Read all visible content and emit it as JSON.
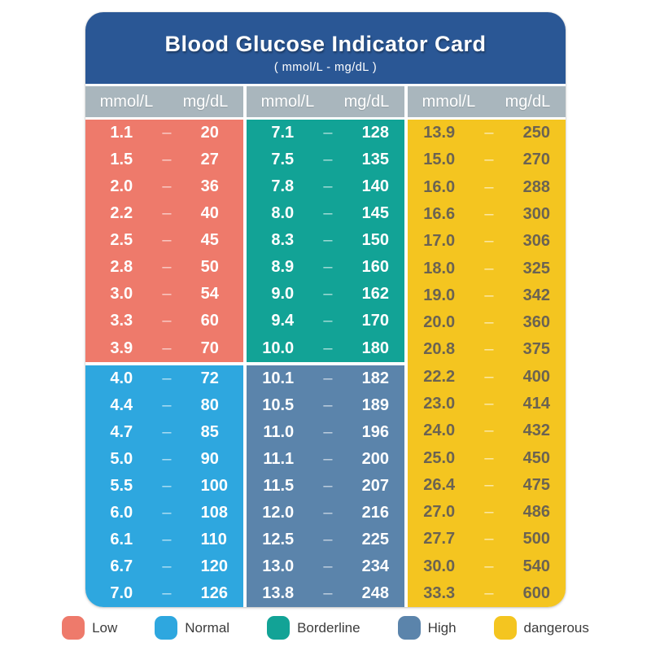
{
  "card": {
    "header": {
      "title": "Blood Glucose Indicator Card",
      "subtitle": "( mmol/L - mg/dL )",
      "bg": "#2a5795"
    },
    "unit_header": {
      "col1": "mmol/L",
      "col2": "mg/dL",
      "bg": "#a9b6bd",
      "segments": 3
    },
    "dash_char": "–"
  },
  "chart_data": {
    "type": "table",
    "title": "Blood Glucose Indicator Card",
    "subtitle": "( mmol/L - mg/dL )",
    "units": [
      "mmol/L",
      "mg/dL"
    ],
    "layout": "3 columns x 18 rows; column 1 = Low + Normal, column 2 = Borderline + High, column 3 = dangerous",
    "sections": [
      {
        "name": "Low",
        "color": "#ee7a6b",
        "text_color": "#ffffff",
        "column": 0,
        "slot": "top",
        "rows": [
          [
            "1.1",
            "20"
          ],
          [
            "1.5",
            "27"
          ],
          [
            "2.0",
            "36"
          ],
          [
            "2.2",
            "40"
          ],
          [
            "2.5",
            "45"
          ],
          [
            "2.8",
            "50"
          ],
          [
            "3.0",
            "54"
          ],
          [
            "3.3",
            "60"
          ],
          [
            "3.9",
            "70"
          ]
        ]
      },
      {
        "name": "Normal",
        "color": "#2ea7df",
        "text_color": "#ffffff",
        "column": 0,
        "slot": "bottom",
        "rows": [
          [
            "4.0",
            "72"
          ],
          [
            "4.4",
            "80"
          ],
          [
            "4.7",
            "85"
          ],
          [
            "5.0",
            "90"
          ],
          [
            "5.5",
            "100"
          ],
          [
            "6.0",
            "108"
          ],
          [
            "6.1",
            "110"
          ],
          [
            "6.7",
            "120"
          ],
          [
            "7.0",
            "126"
          ]
        ]
      },
      {
        "name": "Borderline",
        "color": "#12a396",
        "text_color": "#ffffff",
        "column": 1,
        "slot": "top",
        "rows": [
          [
            "7.1",
            "128"
          ],
          [
            "7.5",
            "135"
          ],
          [
            "7.8",
            "140"
          ],
          [
            "8.0",
            "145"
          ],
          [
            "8.3",
            "150"
          ],
          [
            "8.9",
            "160"
          ],
          [
            "9.0",
            "162"
          ],
          [
            "9.4",
            "170"
          ],
          [
            "10.0",
            "180"
          ]
        ]
      },
      {
        "name": "High",
        "color": "#5b84ab",
        "text_color": "#ffffff",
        "column": 1,
        "slot": "bottom",
        "rows": [
          [
            "10.1",
            "182"
          ],
          [
            "10.5",
            "189"
          ],
          [
            "11.0",
            "196"
          ],
          [
            "11.1",
            "200"
          ],
          [
            "11.5",
            "207"
          ],
          [
            "12.0",
            "216"
          ],
          [
            "12.5",
            "225"
          ],
          [
            "13.0",
            "234"
          ],
          [
            "13.8",
            "248"
          ]
        ]
      },
      {
        "name": "dangerous",
        "color": "#f4c520",
        "text_color": "#6b6352",
        "column": 2,
        "slot": "full",
        "rows": [
          [
            "13.9",
            "250"
          ],
          [
            "15.0",
            "270"
          ],
          [
            "16.0",
            "288"
          ],
          [
            "16.6",
            "300"
          ],
          [
            "17.0",
            "306"
          ],
          [
            "18.0",
            "325"
          ],
          [
            "19.0",
            "342"
          ],
          [
            "20.0",
            "360"
          ],
          [
            "20.8",
            "375"
          ],
          [
            "22.2",
            "400"
          ],
          [
            "23.0",
            "414"
          ],
          [
            "24.0",
            "432"
          ],
          [
            "25.0",
            "450"
          ],
          [
            "26.4",
            "475"
          ],
          [
            "27.0",
            "486"
          ],
          [
            "27.7",
            "500"
          ],
          [
            "30.0",
            "540"
          ],
          [
            "33.3",
            "600"
          ]
        ]
      }
    ],
    "legend_position": "bottom",
    "legend": [
      "Low",
      "Normal",
      "Borderline",
      "High",
      "dangerous"
    ]
  }
}
